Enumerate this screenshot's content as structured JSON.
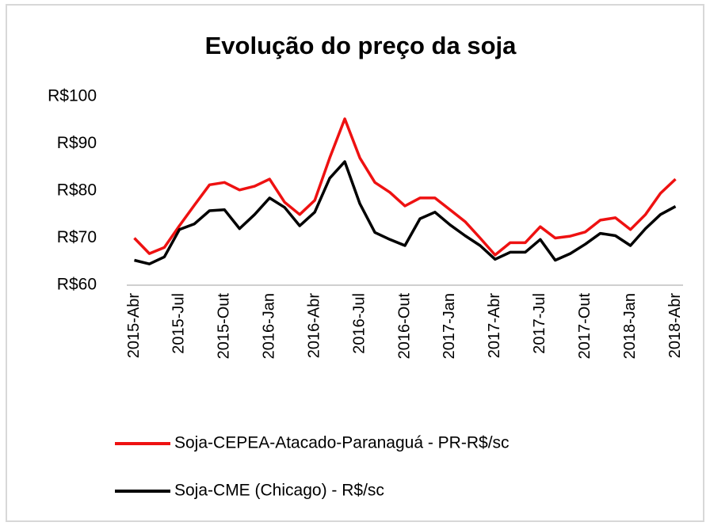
{
  "chart_data": {
    "type": "line",
    "title": "Evolução do preço da soja",
    "categories": [
      "2015-Abr",
      null,
      null,
      "2015-Jul",
      null,
      null,
      "2015-Out",
      null,
      null,
      "2016-Jan",
      null,
      null,
      "2016-Abr",
      null,
      null,
      "2016-Jul",
      null,
      null,
      "2016-Out",
      null,
      null,
      "2017-Jan",
      null,
      null,
      "2017-Abr",
      null,
      null,
      "2017-Jul",
      null,
      null,
      "2017-Out",
      null,
      null,
      "2018-Jan",
      null,
      null,
      "2018-Abr"
    ],
    "series": [
      {
        "name": "Soja-CEPEA-Atacado-Paranaguá - PR-R$/sc",
        "color": "#ee1111",
        "values": [
          70,
          66.7,
          68,
          72.6,
          77,
          81.3,
          81.8,
          80.2,
          81,
          82.5,
          77.6,
          75,
          78,
          87,
          95.3,
          87,
          81.8,
          79.7,
          76.8,
          78.5,
          78.5,
          76,
          73.5,
          70,
          66.4,
          69,
          69,
          72.4,
          70,
          70.4,
          71.3,
          73.8,
          74.3,
          71.8,
          75,
          79.5,
          82.5
        ]
      },
      {
        "name": "Soja-CME (Chicago) - R$/sc",
        "color": "#000000",
        "values": [
          65.3,
          64.5,
          66,
          71.8,
          73,
          75.8,
          76,
          72,
          75,
          78.5,
          76.5,
          72.6,
          75.5,
          82.7,
          86.2,
          77.3,
          71.2,
          69.7,
          68.4,
          74.1,
          75.5,
          72.8,
          70.5,
          68.4,
          65.5,
          67,
          67,
          69.7,
          65.3,
          66.7,
          68.7,
          71,
          70.5,
          68.4,
          72,
          75,
          76.7
        ]
      }
    ],
    "ylim": [
      60,
      100
    ],
    "yticks": [
      {
        "value": 60,
        "label": "R$60"
      },
      {
        "value": 70,
        "label": "R$70"
      },
      {
        "value": 80,
        "label": "R$80"
      },
      {
        "value": 90,
        "label": "R$90"
      },
      {
        "value": 100,
        "label": "R$100"
      }
    ]
  }
}
